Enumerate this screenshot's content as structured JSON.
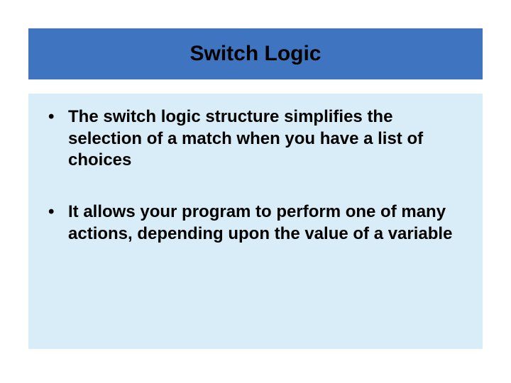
{
  "slide": {
    "title": "Switch Logic",
    "title_bar_color": "#3f74c0",
    "title_text_color": "#000000",
    "body_bg_color": "#d8edf8",
    "page_bg_color": "#ffffff",
    "bullets": [
      {
        "prefix": "The ",
        "keyword": "switch logic",
        "rest": " structure simplifies the selection of a match when you have a list of choices"
      },
      {
        "prefix": "",
        "keyword": "",
        "rest": "It allows your program to perform one of many actions, depending upon the value of a variable"
      }
    ],
    "font_family": "Arial",
    "title_fontsize_pt": 22,
    "body_fontsize_pt": 18,
    "body_font_weight": "bold"
  }
}
